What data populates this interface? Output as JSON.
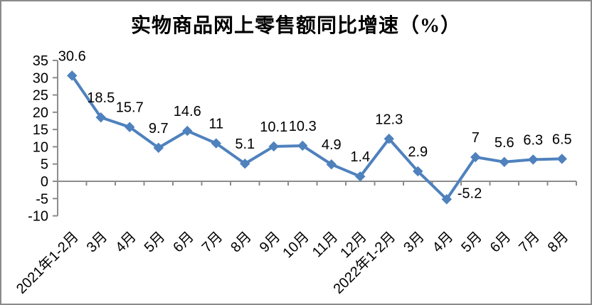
{
  "chart_data": {
    "type": "line",
    "title": "实物商品网上零售额同比增速（%）",
    "categories": [
      "2021年1-2月",
      "3月",
      "4月",
      "5月",
      "6月",
      "7月",
      "8月",
      "9月",
      "10月",
      "11月",
      "12月",
      "2022年1-2月",
      "3月",
      "4月",
      "5月",
      "6月",
      "7月",
      "8月"
    ],
    "values": [
      30.6,
      18.5,
      15.7,
      9.7,
      14.6,
      11,
      5.1,
      10.1,
      10.3,
      4.9,
      1.4,
      12.3,
      2.9,
      -5.2,
      7,
      5.6,
      6.3,
      6.5
    ],
    "y_ticks": [
      35,
      30,
      25,
      20,
      15,
      10,
      5,
      0,
      -5,
      -10
    ],
    "ylim": [
      -10,
      35
    ],
    "xlabel": "",
    "ylabel": "",
    "grid": false,
    "legend_position": "none",
    "marker": "diamond",
    "data_labels_visible": true,
    "colors": {
      "series": "#4F81BD",
      "axis": "#8C8C8C",
      "text": "#000000",
      "background": "#FFFFFF"
    }
  }
}
